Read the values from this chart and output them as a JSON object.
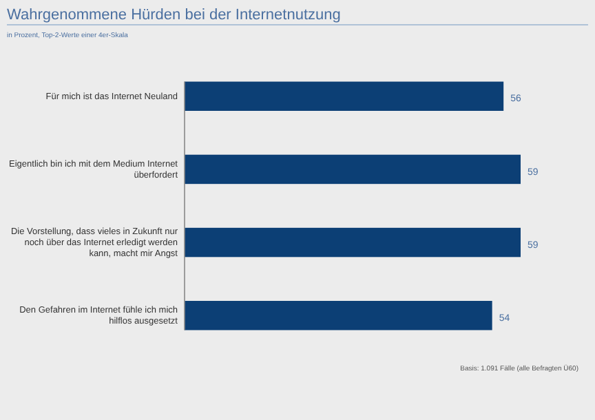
{
  "chart_data": {
    "type": "bar",
    "orientation": "horizontal",
    "title": "Wahrgenommene Hürden bei der Internetnutzung",
    "subtitle": "in Prozent, Top-2-Werte einer 4er-Skala",
    "categories": [
      "Für mich ist das Internet Neuland",
      "Eigentlich bin ich mit dem Medium Internet überfordert",
      "Die Vorstellung, dass vieles in Zukunft nur noch über das Internet erledigt werden kann, macht mir Angst",
      "Den Gefahren im Internet fühle ich mich hilflos ausgesetzt"
    ],
    "values": [
      56,
      59,
      59,
      54
    ],
    "color": "#0c3f75",
    "data_labels": true,
    "annotations": [
      "Basis: 1.091 Fälle (alle Befragten Ü60)"
    ]
  }
}
